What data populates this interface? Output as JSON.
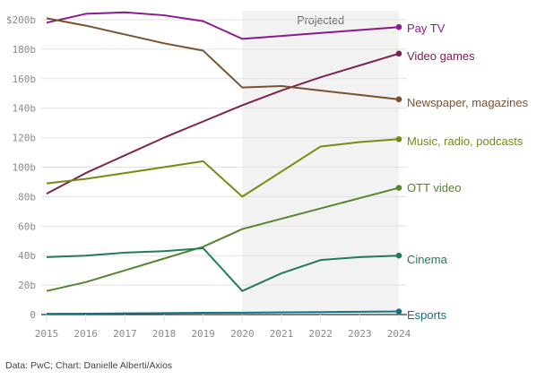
{
  "chart_data": {
    "type": "line",
    "title": "",
    "xlabel": "",
    "ylabel": "",
    "x": [
      2015,
      2016,
      2017,
      2018,
      2019,
      2020,
      2021,
      2022,
      2023,
      2024
    ],
    "ylim": [
      0,
      200
    ],
    "yticks": [
      0,
      20,
      40,
      60,
      80,
      100,
      120,
      140,
      160,
      180,
      200
    ],
    "ytick_labels": [
      "0",
      "20b",
      "40b",
      "60b",
      "80b",
      "100b",
      "120b",
      "140b",
      "160b",
      "180b",
      "$200b"
    ],
    "xtick_labels": [
      "2015",
      "2016",
      "2017",
      "2018",
      "2019",
      "2020",
      "2021",
      "2022",
      "2023",
      "2024"
    ],
    "grid": true,
    "annotation": {
      "label": "Projected",
      "x_range": [
        2020,
        2024
      ]
    },
    "legend": "end-of-line labels (right)",
    "series": [
      {
        "name": "Pay TV",
        "color": "#8b1a8b",
        "values": [
          198,
          204,
          205,
          203,
          199,
          187,
          189,
          191,
          193,
          195
        ]
      },
      {
        "name": "Video games",
        "color": "#7d2352",
        "values": [
          82,
          96,
          108,
          120,
          131,
          142,
          152,
          161,
          169,
          177
        ]
      },
      {
        "name": "Newspaper, magazines",
        "color": "#7a5230",
        "values": [
          201,
          196,
          190,
          184,
          179,
          154,
          155,
          152,
          149,
          146
        ]
      },
      {
        "name": "Music, radio, podcasts",
        "color": "#7a8a10",
        "values": [
          89,
          92,
          96,
          100,
          104,
          80,
          97,
          114,
          117,
          119
        ]
      },
      {
        "name": "OTT video",
        "color": "#55852e",
        "values": [
          16,
          22,
          30,
          38,
          46,
          58,
          65,
          72,
          79,
          86
        ]
      },
      {
        "name": "Cinema",
        "color": "#237a5c",
        "values": [
          39,
          40,
          42,
          43,
          45,
          16,
          28,
          37,
          39,
          40
        ]
      },
      {
        "name": "Esports",
        "color": "#127482",
        "values": [
          0.5,
          0.6,
          0.8,
          1.0,
          1.2,
          1.3,
          1.5,
          1.7,
          1.9,
          2.1
        ]
      }
    ]
  },
  "source": "Data: PwC; Chart: Danielle Alberti/Axios"
}
